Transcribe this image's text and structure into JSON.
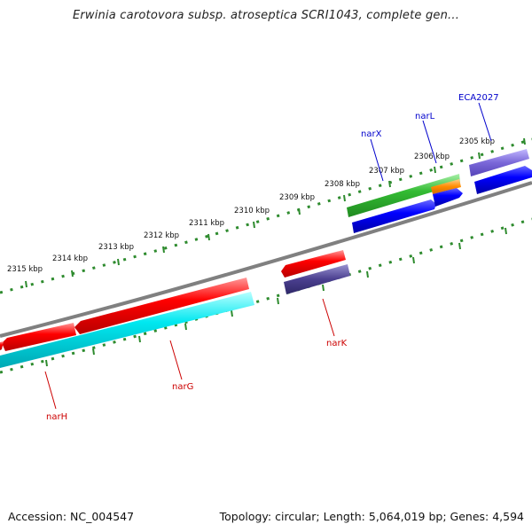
{
  "title": "Erwinia carotovora subsp. atroseptica SCRI1043, complete gen...",
  "footer": {
    "accession": "Accession: NC_004547",
    "summary": "Topology: circular; Length: 5,064,019 bp; Genes: 4,594"
  },
  "colors": {
    "backbone": "#808080",
    "ticks": "#2e8b2e",
    "forward_label": "#0000cc",
    "reverse_label": "#cc0000"
  },
  "scale_labels": [
    "2305 kbp",
    "2306 kbp",
    "2307 kbp",
    "2308 kbp",
    "2309 kbp",
    "2310 kbp",
    "2311 kbp",
    "2312 kbp",
    "2313 kbp",
    "2314 kbp",
    "2315 kbp"
  ],
  "features": [
    {
      "name": "ECA2027",
      "label": "ECA2027",
      "strand": "forward",
      "color": "#7a67d8"
    },
    {
      "name": "narL",
      "label": "narL",
      "strand": "forward",
      "color": "#ff8c00"
    },
    {
      "name": "narX",
      "label": "narX",
      "strand": "forward",
      "color": "#33bb33"
    },
    {
      "name": "narK",
      "label": "narK",
      "strand": "reverse",
      "color": "#ff0000"
    },
    {
      "name": "narG",
      "label": "narG",
      "strand": "reverse",
      "color": "#ff0000"
    },
    {
      "name": "narH",
      "label": "narH",
      "strand": "reverse",
      "color": "#ff0000"
    }
  ]
}
